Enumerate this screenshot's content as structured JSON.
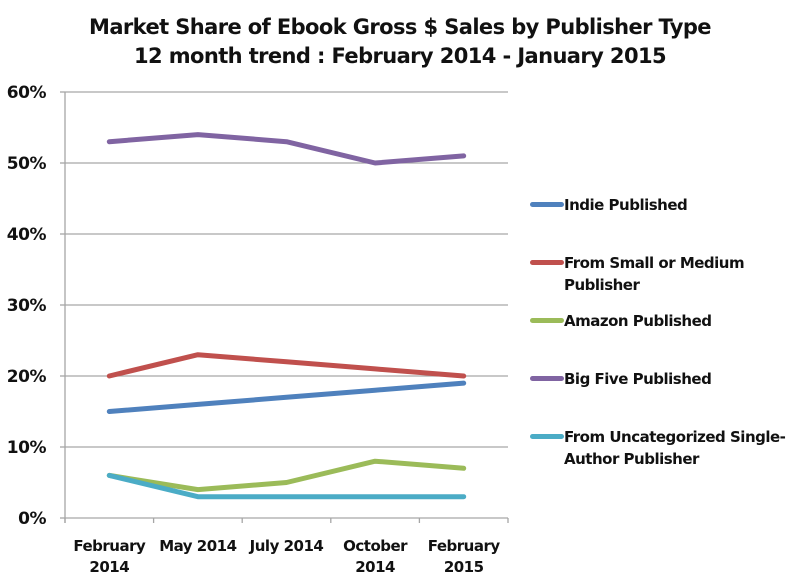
{
  "chart_data": {
    "type": "line",
    "title": "Market Share of Ebook Gross $ Sales by Publisher Type",
    "subtitle": "12 month trend : February 2014 - January 2015",
    "xlabel": "",
    "ylabel": "",
    "categories": [
      "February 2014",
      "May 2014",
      "July 2014",
      "October 2014",
      "February 2015"
    ],
    "category_lines": [
      [
        "February",
        "2014"
      ],
      [
        "May 2014"
      ],
      [
        "July 2014"
      ],
      [
        "October",
        "2014"
      ],
      [
        "February",
        "2015"
      ]
    ],
    "yticks": [
      "0%",
      "10%",
      "20%",
      "30%",
      "40%",
      "50%",
      "60%"
    ],
    "ylim": [
      0,
      60
    ],
    "grid": true,
    "legend_position": "right",
    "series": [
      {
        "name": "Indie Published",
        "color": "#4f81bd",
        "values": [
          15,
          16,
          17,
          18,
          19
        ]
      },
      {
        "name": "From Small or Medium Publisher",
        "color": "#c0504d",
        "values": [
          20,
          23,
          22,
          21,
          20
        ]
      },
      {
        "name": "Amazon Published",
        "color": "#9bbb59",
        "values": [
          6,
          4,
          5,
          8,
          7
        ]
      },
      {
        "name": "Big Five Published",
        "color": "#8064a2",
        "values": [
          53,
          54,
          53,
          50,
          51
        ]
      },
      {
        "name": "From Uncategorized Single-Author Publisher",
        "color": "#4bacc6",
        "values": [
          6,
          3,
          3,
          3,
          3
        ]
      }
    ]
  }
}
